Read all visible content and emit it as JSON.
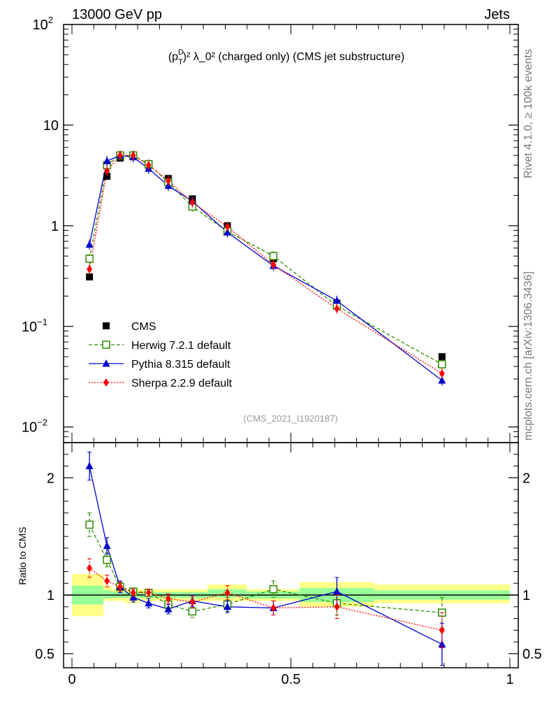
{
  "header": {
    "left": "13000 GeV pp",
    "right": "Jets"
  },
  "side_labels": {
    "rivet": "Rivet 4.1.0, ≥ 100k events",
    "mcplots": "mcplots.cern.ch [arXiv:1306.3436]"
  },
  "colors": {
    "cms": "#000000",
    "herwig": "#2e8b00",
    "pythia": "#0000cc",
    "sherpa": "#ff0000",
    "band_inner": "#99ff99",
    "band_outer": "#ffff88"
  },
  "chart_data": [
    {
      "type": "scatter",
      "panel": "main",
      "title": "(p_T^D)^2 λ_0^2 (charged only) (CMS jet substructure)",
      "title_parts": {
        "base": "(p",
        "sup": "D",
        "sub": "T",
        "rest": ")² λ_0² (charged only) (CMS jet substructure)"
      },
      "watermark": "(CMS_2021_I1920187)",
      "yscale": "log",
      "ylim": [
        0.007,
        100
      ],
      "xlim": [
        -0.02,
        1.02
      ],
      "yticks": [
        {
          "value": 100,
          "base": "10",
          "exp": "2"
        },
        {
          "value": 10,
          "base": "10",
          "exp": ""
        },
        {
          "value": 1,
          "base": "1",
          "exp": ""
        },
        {
          "value": 0.1,
          "base": "10",
          "exp": "−1"
        },
        {
          "value": 0.01,
          "base": "10",
          "exp": "−2"
        }
      ],
      "x": [
        0.04,
        0.08,
        0.11,
        0.14,
        0.175,
        0.22,
        0.275,
        0.355,
        0.46,
        0.605,
        0.845
      ],
      "series": [
        {
          "name": "CMS",
          "label": "CMS",
          "marker": "square-filled",
          "values": [
            0.31,
            3.1,
            4.7,
            4.9,
            4.0,
            2.95,
            1.85,
            1.0,
            0.47,
            0.17,
            0.05
          ]
        },
        {
          "name": "Herwig",
          "label": "Herwig 7.2.1 default",
          "marker": "square-open",
          "line": "dashed",
          "values": [
            0.47,
            4.0,
            5.0,
            5.0,
            4.1,
            2.7,
            1.55,
            0.88,
            0.5,
            0.16,
            0.042
          ]
        },
        {
          "name": "Pythia",
          "label": "Pythia 8.315 default",
          "marker": "triangle",
          "line": "solid",
          "values": [
            0.65,
            4.4,
            5.0,
            4.8,
            3.7,
            2.5,
            1.75,
            0.86,
            0.4,
            0.18,
            0.029
          ]
        },
        {
          "name": "Sherpa",
          "label": "Sherpa 2.2.9 default",
          "marker": "diamond",
          "line": "dotted",
          "values": [
            0.37,
            3.5,
            5.0,
            5.0,
            4.0,
            2.8,
            1.7,
            0.98,
            0.41,
            0.15,
            0.034
          ]
        }
      ]
    },
    {
      "type": "scatter",
      "panel": "ratio",
      "ylabel": "Ratio to CMS",
      "ylim": [
        0.38,
        2.3
      ],
      "yticks": [
        2,
        1,
        0.5
      ],
      "ytick_labels": [
        "2",
        "1",
        "0.5"
      ],
      "xticks": [
        0,
        0.5,
        1
      ],
      "xtick_labels": [
        "0",
        "0.5",
        "1"
      ],
      "bins": [
        {
          "x0": 0.0,
          "x1": 0.072,
          "inner": [
            0.92,
            1.08
          ],
          "outer": [
            0.82,
            1.18
          ]
        },
        {
          "x0": 0.072,
          "x1": 0.09,
          "inner": [
            0.97,
            1.04
          ],
          "outer": [
            0.95,
            1.08
          ]
        },
        {
          "x0": 0.09,
          "x1": 0.12,
          "inner": [
            0.975,
            1.03
          ],
          "outer": [
            0.95,
            1.05
          ]
        },
        {
          "x0": 0.12,
          "x1": 0.155,
          "inner": [
            0.975,
            1.025
          ],
          "outer": [
            0.93,
            1.05
          ]
        },
        {
          "x0": 0.155,
          "x1": 0.19,
          "inner": [
            0.975,
            1.025
          ],
          "outer": [
            0.95,
            1.05
          ]
        },
        {
          "x0": 0.19,
          "x1": 0.245,
          "inner": [
            0.975,
            1.025
          ],
          "outer": [
            0.95,
            1.05
          ]
        },
        {
          "x0": 0.245,
          "x1": 0.31,
          "inner": [
            0.975,
            1.025
          ],
          "outer": [
            0.95,
            1.05
          ]
        },
        {
          "x0": 0.31,
          "x1": 0.4,
          "inner": [
            0.98,
            1.05
          ],
          "outer": [
            0.95,
            1.09
          ]
        },
        {
          "x0": 0.4,
          "x1": 0.52,
          "inner": [
            0.97,
            1.03
          ],
          "outer": [
            0.95,
            1.05
          ]
        },
        {
          "x0": 0.52,
          "x1": 0.69,
          "inner": [
            0.94,
            1.06
          ],
          "outer": [
            0.9,
            1.11
          ]
        },
        {
          "x0": 0.69,
          "x1": 1.0,
          "inner": [
            0.96,
            1.04
          ],
          "outer": [
            0.93,
            1.09
          ]
        }
      ],
      "series": [
        {
          "name": "Herwig",
          "values": [
            1.6,
            1.3,
            1.07,
            1.03,
            1.02,
            0.92,
            0.86,
            0.92,
            1.05,
            0.93,
            0.85
          ],
          "err": [
            0.1,
            0.06,
            0.04,
            0.03,
            0.03,
            0.04,
            0.05,
            0.06,
            0.07,
            0.1,
            0.13
          ]
        },
        {
          "name": "Pythia",
          "values": [
            2.1,
            1.42,
            1.07,
            0.98,
            0.93,
            0.88,
            0.95,
            0.9,
            0.89,
            1.03,
            0.58
          ],
          "err": [
            0.12,
            0.07,
            0.05,
            0.04,
            0.04,
            0.04,
            0.05,
            0.05,
            0.06,
            0.12,
            0.18
          ]
        },
        {
          "name": "Sherpa",
          "values": [
            1.23,
            1.12,
            1.07,
            1.02,
            1.02,
            0.97,
            0.94,
            1.02,
            0.89,
            0.9,
            0.7
          ],
          "err": [
            0.08,
            0.05,
            0.04,
            0.03,
            0.03,
            0.04,
            0.05,
            0.06,
            0.06,
            0.1,
            0.15
          ]
        }
      ]
    }
  ]
}
